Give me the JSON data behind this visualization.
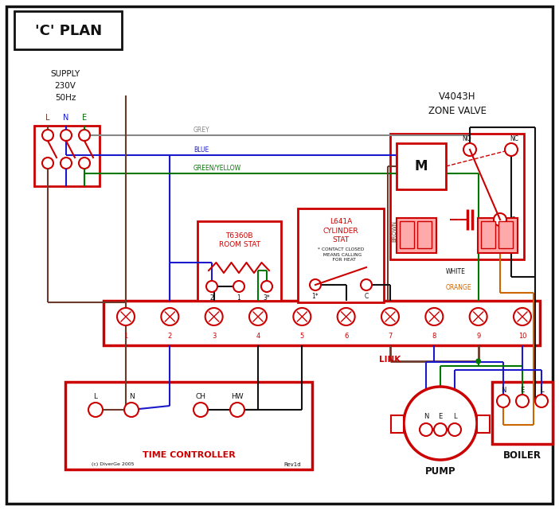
{
  "title": "'C' PLAN",
  "bg": "#ffffff",
  "red": "#cc0000",
  "blue": "#1a1acc",
  "green": "#007700",
  "brown": "#6B3A2A",
  "grey": "#888888",
  "orange": "#cc6600",
  "black": "#111111",
  "pink": "#ffaaaa",
  "supply_text": "SUPPLY\n230V\n50Hz",
  "tc_label": "TIME CONTROLLER",
  "rs_label": "T6360B\nROOM STAT",
  "cs_label": "L641A\nCYLINDER\nSTAT",
  "cs_note": "* CONTACT CLOSED\n  MEANS CALLING\n    FOR HEAT",
  "zv_label": "V4043H\nZONE VALVE",
  "pump_label": "PUMP",
  "boiler_label": "BOILER",
  "copyright": "(c) DiverGe 2005",
  "rev": "Rev1d"
}
